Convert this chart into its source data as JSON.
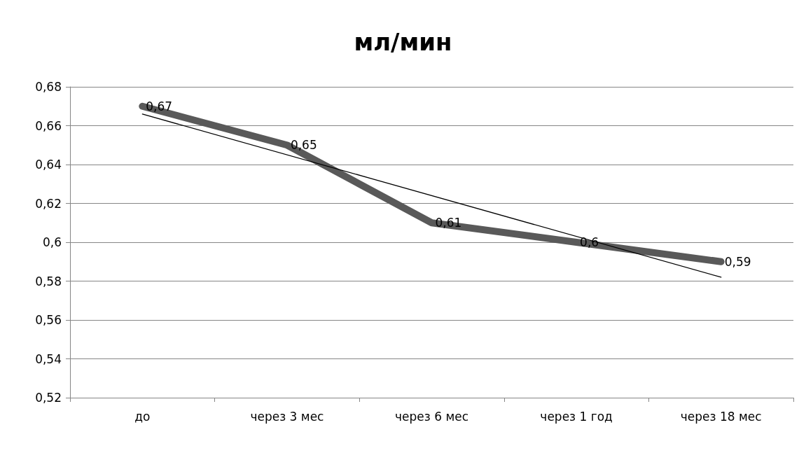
{
  "chart_data": {
    "type": "line",
    "title": "мл/мин",
    "categories": [
      "до",
      "через 3 мес",
      "через 6 мес",
      "через 1 год",
      "через 18 мес"
    ],
    "series": [
      {
        "color": "#595959",
        "values": [
          0.67,
          0.65,
          0.61,
          0.6,
          0.59
        ],
        "value_labels": [
          "0,67",
          "0,65",
          "0,61",
          "0,6",
          "0,59"
        ],
        "line_style": "solid"
      },
      {
        "type": "line",
        "color": "#000000",
        "x": [
          "до",
          "через 18 мес"
        ],
        "values": [
          0.666,
          0.582
        ],
        "line_style": "solid"
      }
    ],
    "ylim": [
      0.52,
      0.68
    ],
    "yticks": [
      {
        "value": 0.52,
        "label": "0,52"
      },
      {
        "value": 0.54,
        "label": "0,54"
      },
      {
        "value": 0.56,
        "label": "0,56"
      },
      {
        "value": 0.58,
        "label": "0,58"
      },
      {
        "value": 0.6,
        "label": "0,6"
      },
      {
        "value": 0.62,
        "label": "0,62"
      },
      {
        "value": 0.64,
        "label": "0,64"
      },
      {
        "value": 0.66,
        "label": "0,66"
      },
      {
        "value": 0.68,
        "label": "0,68"
      }
    ],
    "grid": "y",
    "marker": "none"
  }
}
